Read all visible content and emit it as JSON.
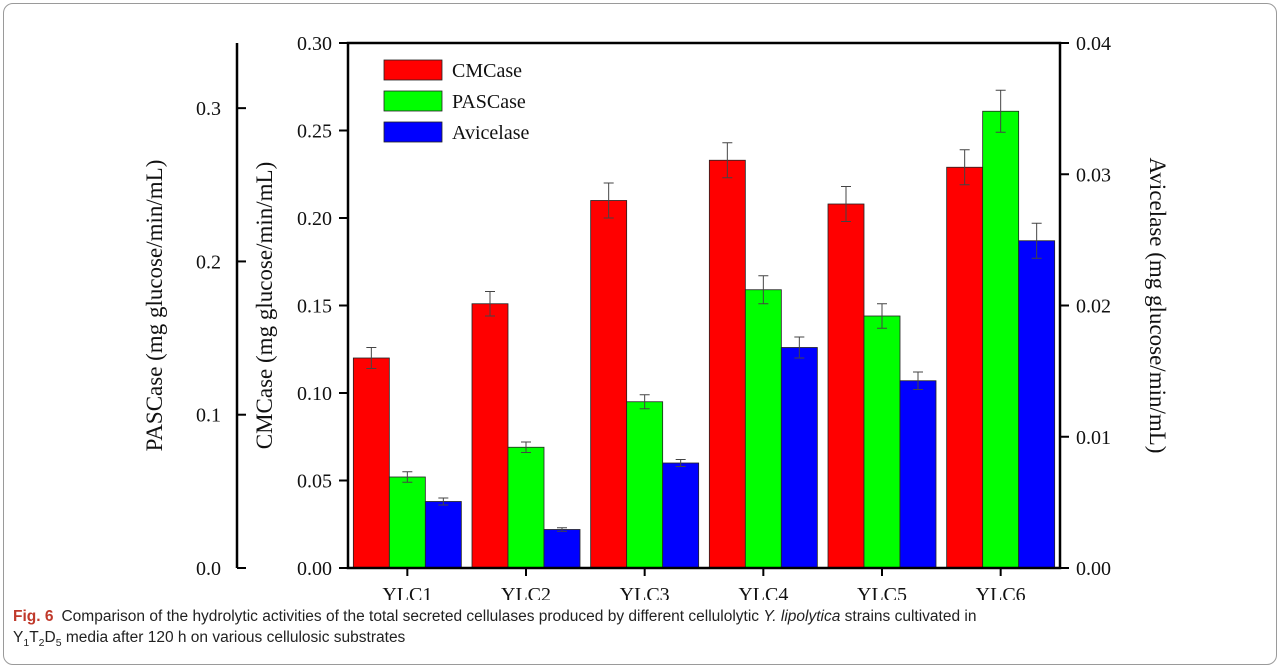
{
  "caption": {
    "label": "Fig. 6",
    "part1": "Comparison of the hydrolytic activities of the total secreted cellulases produced by different cellulolytic ",
    "italic": "Y. lipolytica",
    "part2": " strains cultivated in",
    "media_Y": "Y",
    "media_Y_sub": "1",
    "media_T": "T",
    "media_T_sub": "2",
    "media_D": "D",
    "media_D_sub": "5",
    "part3": " media after 120 h on various cellulosic substrates"
  },
  "chart_data": {
    "type": "bar",
    "categories": [
      "YLC1",
      "YLC2",
      "YLC3",
      "YLC4",
      "YLC5",
      "YLC6"
    ],
    "series": [
      {
        "name": "CMCase",
        "axis": "CMCase",
        "color": "#ff0000",
        "values": [
          0.12,
          0.151,
          0.21,
          0.233,
          0.208,
          0.229
        ],
        "errors": [
          0.006,
          0.007,
          0.01,
          0.01,
          0.01,
          0.01
        ]
      },
      {
        "name": "PASCase",
        "axis": "CMCase",
        "color": "#00ff00",
        "values": [
          0.052,
          0.069,
          0.095,
          0.159,
          0.144,
          0.261
        ],
        "errors": [
          0.003,
          0.003,
          0.004,
          0.008,
          0.007,
          0.012
        ]
      },
      {
        "name": "Avicelase",
        "axis": "CMCase",
        "color": "#0000ff",
        "values": [
          0.038,
          0.022,
          0.06,
          0.126,
          0.107,
          0.187
        ],
        "errors": [
          0.002,
          0.001,
          0.002,
          0.006,
          0.005,
          0.01
        ]
      }
    ],
    "axes": {
      "CMCase": {
        "label": "CMCase (mg glucose/min/mL)",
        "range": [
          0,
          0.3
        ],
        "ticks": [
          "0.00",
          "0.05",
          "0.10",
          "0.15",
          "0.20",
          "0.25",
          "0.30"
        ]
      },
      "PASCase": {
        "label": "PASCase (mg glucose/min/mL)",
        "range": [
          0,
          0.3425
        ],
        "ticks": [
          "0.0",
          "0.1",
          "0.2",
          "0.3"
        ]
      },
      "Avicelase": {
        "label": "Avicelase (mg glucose/min/mL)",
        "range": [
          0,
          0.04
        ],
        "ticks": [
          "0.00",
          "0.01",
          "0.02",
          "0.03",
          "0.04"
        ]
      }
    },
    "legend": {
      "position": "top-left",
      "entries": [
        "CMCase",
        "PASCase",
        "Avicelase"
      ]
    },
    "grid": false
  }
}
